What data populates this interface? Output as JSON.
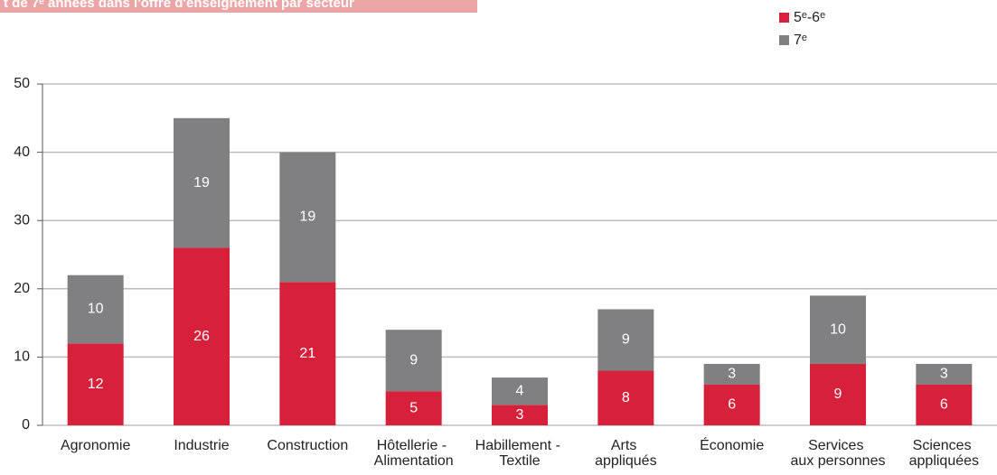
{
  "chart_data": {
    "type": "bar",
    "stacked": true,
    "title": "t de 7ᵉ années dans l'offre d'enseignement par secteur",
    "categories": [
      "Agronomie",
      "Industrie",
      "Construction",
      "Hôtellerie - Alimentation",
      "Habillement - Textile",
      "Arts appliqués",
      "Économie",
      "Services aux personnes",
      "Sciences appliquées"
    ],
    "series": [
      {
        "name": "5ᵉ-6ᵉ",
        "color": "#d7203a",
        "values": [
          12,
          26,
          21,
          5,
          3,
          8,
          6,
          9,
          6
        ]
      },
      {
        "name": "7ᵉ",
        "color": "#808083",
        "values": [
          10,
          19,
          19,
          9,
          4,
          9,
          3,
          10,
          3
        ]
      }
    ],
    "ylim": [
      0,
      50
    ],
    "yticks": [
      0,
      10,
      20,
      30,
      40,
      50
    ],
    "grid": true,
    "legend": "top-right"
  }
}
